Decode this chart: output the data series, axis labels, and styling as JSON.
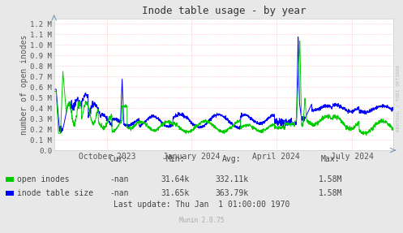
{
  "title": "Inode table usage - by year",
  "ylabel": "number of open inodes",
  "background_color": "#e8e8e8",
  "plot_bg_color": "#ffffff",
  "grid_color": "#ffaaaa",
  "ytick_labels": [
    "0.0",
    "0.1 M",
    "0.2 M",
    "0.3 M",
    "0.4 M",
    "0.5 M",
    "0.6 M",
    "0.7 M",
    "0.8 M",
    "0.9 M",
    "1.0 M",
    "1.1 M",
    "1.2 M"
  ],
  "ytick_values": [
    0,
    100000,
    200000,
    300000,
    400000,
    500000,
    600000,
    700000,
    800000,
    900000,
    1000000,
    1100000,
    1200000
  ],
  "xtick_labels": [
    "October 2023",
    "January 2024",
    "April 2024",
    "July 2024"
  ],
  "xtick_positions": [
    0.155,
    0.405,
    0.655,
    0.88
  ],
  "legend": [
    {
      "label": "open inodes",
      "color": "#00cc00"
    },
    {
      "label": "inode table size",
      "color": "#0000ff"
    }
  ],
  "stats": {
    "headers": [
      "Cur:",
      "Min:",
      "Avg:",
      "Max:"
    ],
    "rows": [
      [
        "-nan",
        "31.64k",
        "332.11k",
        "1.58M"
      ],
      [
        "-nan",
        "31.65k",
        "363.79k",
        "1.58M"
      ]
    ],
    "last_update": "Last update: Thu Jan  1 01:00:00 1970"
  },
  "watermark": "RRDTOOL / TOBI OETIKER",
  "munin_version": "Munin 2.0.75",
  "ylim": [
    0,
    1250000
  ],
  "line_color_green": "#00cc00",
  "line_color_blue": "#0000ff"
}
